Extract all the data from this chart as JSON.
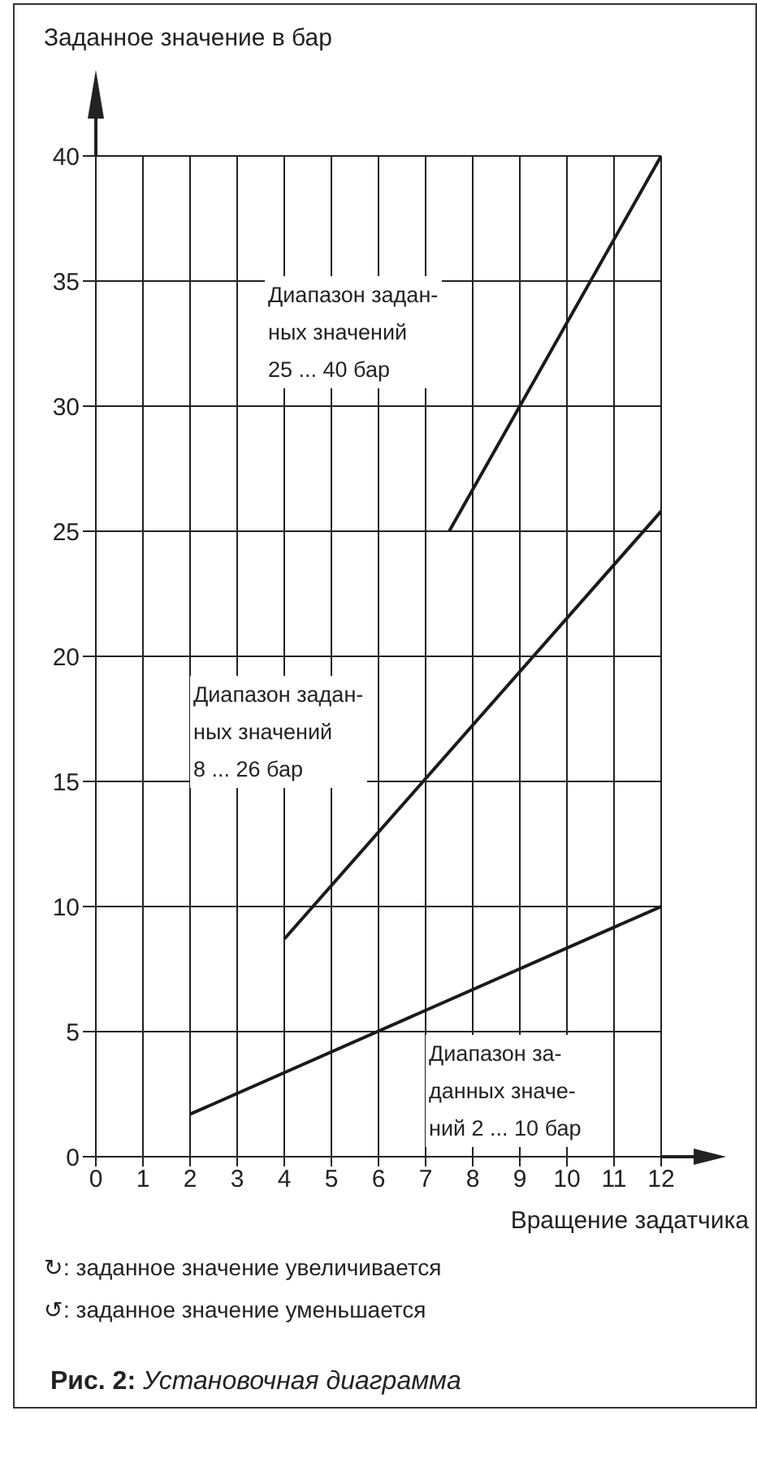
{
  "chart_data": {
    "type": "line",
    "title": "Рис. 2: Установочная диаграмма",
    "xlabel": "Вращение задатчика",
    "ylabel": "Заданное значение в бар",
    "xlim": [
      0,
      12
    ],
    "xticks": [
      0,
      1,
      2,
      3,
      4,
      5,
      6,
      7,
      8,
      9,
      10,
      11,
      12
    ],
    "ylim": [
      0,
      40
    ],
    "yticks": [
      0,
      5,
      10,
      15,
      20,
      25,
      30,
      35,
      40
    ],
    "grid": true,
    "marker": "none",
    "series": [
      {
        "color": "#1a1a1a",
        "x": [
          2,
          12
        ],
        "values": [
          1.7,
          10
        ]
      },
      {
        "color": "#1a1a1a",
        "x": [
          4,
          12
        ],
        "values": [
          8.7,
          25.8
        ]
      },
      {
        "color": "#1a1a1a",
        "x": [
          7.5,
          12
        ],
        "values": [
          25,
          40
        ]
      }
    ],
    "annotations": [
      "Диапазон задан-\nных значений\n25 ... 40 бар",
      "Диапазон задан-\nных значений\n8 ... 26 бар",
      "Диапазон за-\nданных значе-\nний 2 ... 10 бар",
      "↻: заданное значение увеличивается",
      "↺: заданное значение уменьшается"
    ]
  }
}
